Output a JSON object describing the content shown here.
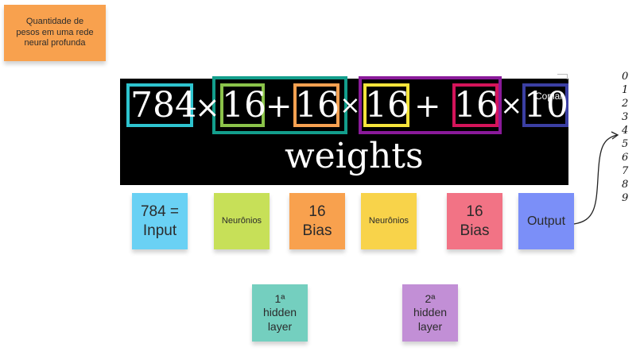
{
  "top_note": {
    "text": "Quantidade de\npesos em uma rede\nneural profunda",
    "color": "#f8a14e"
  },
  "formula": {
    "terms": [
      "784",
      "16",
      "16",
      "16",
      "16",
      "10"
    ],
    "operators": [
      "×",
      "+",
      "×",
      "+",
      "×"
    ],
    "caption": "weights",
    "overlay_label": "Copiar",
    "box_colors": {
      "input": "#2ec4cf",
      "neurons1": "#8bc34a",
      "bias1": "#f7a151",
      "layer1_group": "#139e8c",
      "neurons2": "#f5e43b",
      "bias2": "#d4145a",
      "layer2_group": "#8a1a9a",
      "output": "#3b3fa3"
    }
  },
  "stickies": [
    {
      "text": "784 =\nInput",
      "color": "#6ad1f4"
    },
    {
      "text": "Neurônios",
      "color": "#c7e058"
    },
    {
      "text": "16\nBias",
      "color": "#f8a14e"
    },
    {
      "text": "Neurônios",
      "color": "#f8d34a"
    },
    {
      "text": "16\nBias",
      "color": "#f27385"
    },
    {
      "text": "Output",
      "color": "#7b8ff8"
    }
  ],
  "layers": [
    {
      "text": "1ª\nhidden\nlayer",
      "color": "#74cfbf"
    },
    {
      "text": "2ª\nhidden\nlayer",
      "color": "#c28fd6"
    }
  ],
  "digits": [
    "0",
    "1",
    "2",
    "3",
    "4",
    "5",
    "6",
    "7",
    "8",
    "9"
  ]
}
